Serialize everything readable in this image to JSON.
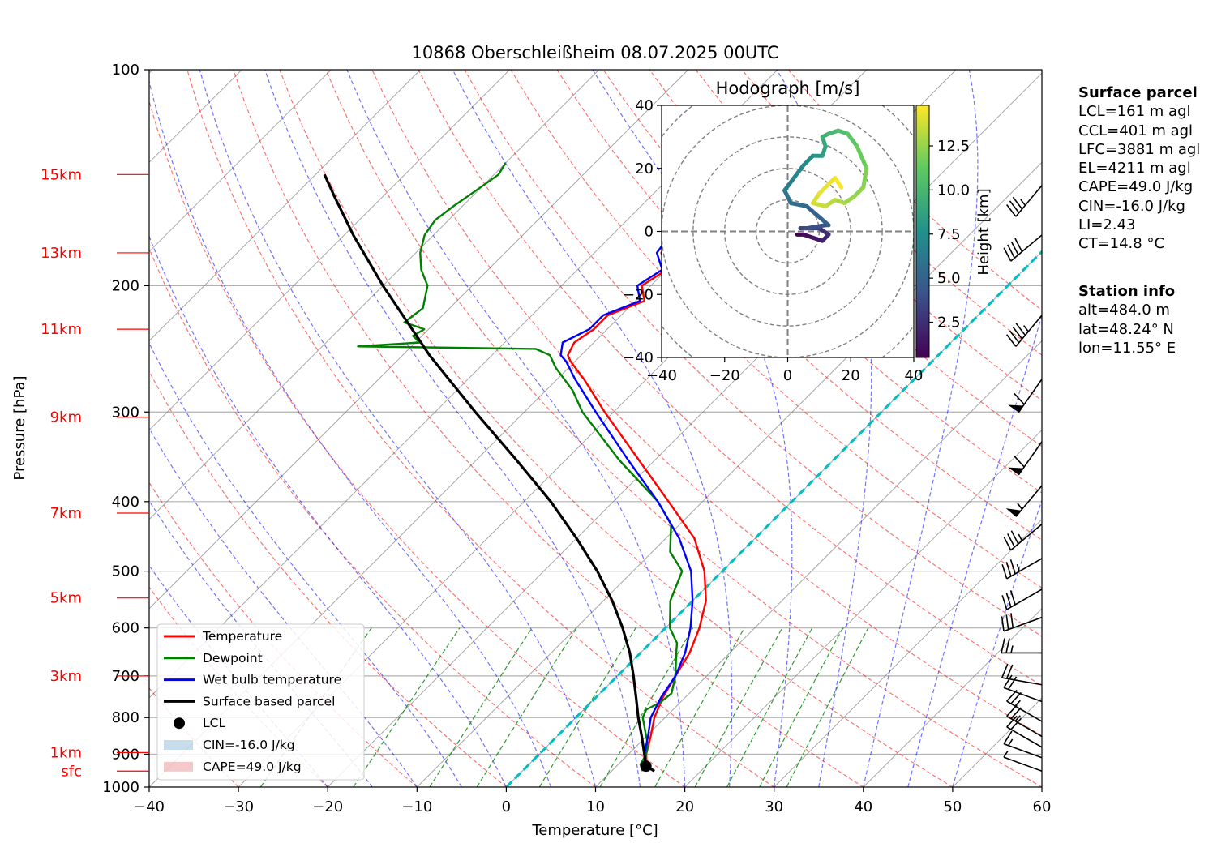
{
  "chart_data": {
    "type": "skew-t",
    "title": "10868 Oberschleißheim 08.07.2025 00UTC",
    "xlabel": "Temperature [°C]",
    "ylabel": "Pressure [hPa]",
    "xlim": [
      -40,
      60
    ],
    "ylim": [
      1000,
      100
    ],
    "y_scale": "log",
    "x_ticks": [
      "−40",
      "−30",
      "−20",
      "−10",
      "0",
      "10",
      "20",
      "30",
      "40",
      "50",
      "60"
    ],
    "y_ticks": [
      "100",
      "200",
      "300",
      "400",
      "500",
      "600",
      "700",
      "800",
      "900",
      "1000"
    ],
    "height_labels": [
      {
        "label": "15km",
        "p": 140
      },
      {
        "label": "13km",
        "p": 180
      },
      {
        "label": "11km",
        "p": 230
      },
      {
        "label": "9km",
        "p": 305
      },
      {
        "label": "7km",
        "p": 415
      },
      {
        "label": "5km",
        "p": 545
      },
      {
        "label": "3km",
        "p": 700
      },
      {
        "label": "1km",
        "p": 895
      },
      {
        "label": "sfc",
        "p": 950
      }
    ],
    "legend_position": "lower-left",
    "legend": [
      "Temperature",
      "Dewpoint",
      "Wet bulb temperature",
      "Surface based parcel",
      "LCL",
      "CIN=-16.0 J/kg",
      "CAPE=49.0 J/kg"
    ],
    "series": [
      {
        "name": "Temperature",
        "color": "#ff0000",
        "points": [
          [
            950,
            14.8
          ],
          [
            930,
            13.2
          ],
          [
            900,
            12.0
          ],
          [
            850,
            10.5
          ],
          [
            800,
            8.8
          ],
          [
            750,
            7.5
          ],
          [
            700,
            6.5
          ],
          [
            650,
            5.5
          ],
          [
            600,
            3.8
          ],
          [
            550,
            1.5
          ],
          [
            500,
            -2.0
          ],
          [
            450,
            -6.8
          ],
          [
            400,
            -13.8
          ],
          [
            350,
            -21.8
          ],
          [
            300,
            -31.0
          ],
          [
            270,
            -37.0
          ],
          [
            255,
            -40.5
          ],
          [
            250,
            -41.5
          ],
          [
            240,
            -42.2
          ],
          [
            230,
            -41.5
          ],
          [
            220,
            -41.5
          ],
          [
            210,
            -39.0
          ],
          [
            200,
            -41.0
          ],
          [
            190,
            -40.0
          ],
          [
            180,
            -42.5
          ],
          [
            170,
            -43.0
          ],
          [
            160,
            -45.0
          ],
          [
            150,
            -46.5
          ],
          [
            140,
            -48.0
          ],
          [
            135,
            -49.8
          ]
        ]
      },
      {
        "name": "Dewpoint",
        "color": "#008000",
        "points": [
          [
            950,
            13.5
          ],
          [
            930,
            12.5
          ],
          [
            900,
            12.0
          ],
          [
            870,
            11.0
          ],
          [
            850,
            10.0
          ],
          [
            800,
            7.5
          ],
          [
            780,
            7.0
          ],
          [
            760,
            7.8
          ],
          [
            740,
            8.0
          ],
          [
            700,
            6.5
          ],
          [
            650,
            4.0
          ],
          [
            630,
            3.0
          ],
          [
            600,
            0.5
          ],
          [
            550,
            -2.5
          ],
          [
            500,
            -4.5
          ],
          [
            470,
            -8.0
          ],
          [
            430,
            -11.0
          ],
          [
            400,
            -15.0
          ],
          [
            350,
            -24.0
          ],
          [
            300,
            -33.5
          ],
          [
            280,
            -37.0
          ],
          [
            260,
            -41.5
          ],
          [
            250,
            -43.5
          ],
          [
            245,
            -45.8
          ],
          [
            243,
            -66.0
          ],
          [
            240,
            -59.5
          ],
          [
            235,
            -61.0
          ],
          [
            230,
            -60.5
          ],
          [
            225,
            -63.5
          ],
          [
            215,
            -63.0
          ],
          [
            200,
            -65.0
          ],
          [
            190,
            -67.5
          ],
          [
            180,
            -69.5
          ],
          [
            170,
            -71.0
          ],
          [
            162,
            -71.5
          ],
          [
            155,
            -71.0
          ],
          [
            150,
            -70.5
          ],
          [
            145,
            -70.0
          ],
          [
            140,
            -69.5
          ],
          [
            135,
            -70.0
          ]
        ]
      },
      {
        "name": "Wet bulb temperature",
        "color": "#0000ff",
        "points": [
          [
            950,
            14.2
          ],
          [
            930,
            13.0
          ],
          [
            900,
            11.8
          ],
          [
            850,
            10.2
          ],
          [
            800,
            8.4
          ],
          [
            750,
            7.3
          ],
          [
            700,
            6.5
          ],
          [
            650,
            5.0
          ],
          [
            600,
            2.8
          ],
          [
            550,
            0.0
          ],
          [
            500,
            -3.5
          ],
          [
            450,
            -8.5
          ],
          [
            400,
            -15.0
          ],
          [
            350,
            -23.0
          ],
          [
            300,
            -32.0
          ],
          [
            270,
            -38.0
          ],
          [
            255,
            -41.0
          ],
          [
            250,
            -42.3
          ],
          [
            240,
            -43.5
          ],
          [
            230,
            -42.0
          ],
          [
            220,
            -42.0
          ],
          [
            210,
            -39.5
          ],
          [
            200,
            -41.5
          ],
          [
            190,
            -40.5
          ],
          [
            180,
            -43.0
          ],
          [
            170,
            -43.5
          ],
          [
            160,
            -45.5
          ],
          [
            150,
            -47.0
          ],
          [
            140,
            -48.5
          ],
          [
            135,
            -50.5
          ]
        ]
      },
      {
        "name": "Surface based parcel",
        "color": "#000000",
        "points": [
          [
            950,
            14.8
          ],
          [
            935,
            13.3
          ],
          [
            900,
            11.8
          ],
          [
            850,
            9.5
          ],
          [
            800,
            7.0
          ],
          [
            750,
            4.5
          ],
          [
            700,
            1.8
          ],
          [
            650,
            -1.2
          ],
          [
            600,
            -4.8
          ],
          [
            550,
            -9.0
          ],
          [
            500,
            -14.0
          ],
          [
            450,
            -20.0
          ],
          [
            400,
            -27.0
          ],
          [
            350,
            -35.5
          ],
          [
            300,
            -45.5
          ],
          [
            250,
            -57.0
          ],
          [
            200,
            -70.0
          ],
          [
            170,
            -79.0
          ],
          [
            150,
            -85.5
          ],
          [
            140,
            -89.0
          ]
        ]
      }
    ],
    "lcl": {
      "label": "LCL",
      "p": 935,
      "t": 13.3
    },
    "cin": "CIN=-16.0 J/kg",
    "cape": "CAPE=49.0 J/kg",
    "wind_barbs": [
      {
        "p": 950,
        "speed_kt": 5,
        "dir": 290
      },
      {
        "p": 910,
        "speed_kt": 15,
        "dir": 290
      },
      {
        "p": 880,
        "speed_kt": 20,
        "dir": 300
      },
      {
        "p": 850,
        "speed_kt": 25,
        "dir": 300
      },
      {
        "p": 810,
        "speed_kt": 25,
        "dir": 300
      },
      {
        "p": 760,
        "speed_kt": 20,
        "dir": 290
      },
      {
        "p": 720,
        "speed_kt": 20,
        "dir": 280
      },
      {
        "p": 650,
        "speed_kt": 25,
        "dir": 270
      },
      {
        "p": 580,
        "speed_kt": 30,
        "dir": 250
      },
      {
        "p": 530,
        "speed_kt": 30,
        "dir": 240
      },
      {
        "p": 480,
        "speed_kt": 35,
        "dir": 240
      },
      {
        "p": 430,
        "speed_kt": 35,
        "dir": 230
      },
      {
        "p": 380,
        "speed_kt": 55,
        "dir": 220
      },
      {
        "p": 330,
        "speed_kt": 60,
        "dir": 215
      },
      {
        "p": 270,
        "speed_kt": 60,
        "dir": 215
      },
      {
        "p": 220,
        "speed_kt": 45,
        "dir": 220
      },
      {
        "p": 170,
        "speed_kt": 40,
        "dir": 230
      },
      {
        "p": 145,
        "speed_kt": 35,
        "dir": 220
      }
    ],
    "hodograph": {
      "title": "Hodograph [m/s]",
      "xlim": [
        -40,
        40
      ],
      "ylim": [
        -40,
        40
      ],
      "ticks": [
        "−40",
        "−20",
        "0",
        "20",
        "40"
      ],
      "colorbar_label": "Height [km]",
      "colorbar_ticks": [
        "2.5",
        "5.0",
        "7.5",
        "10.0",
        "12.5"
      ],
      "colorbar_range": [
        0.5,
        14.8
      ],
      "points": [
        [
          0.5,
          3,
          -1
        ],
        [
          1.0,
          5,
          -1
        ],
        [
          1.5,
          8,
          -2
        ],
        [
          2.0,
          11,
          -3
        ],
        [
          2.5,
          13,
          -1
        ],
        [
          3.0,
          10,
          1
        ],
        [
          3.5,
          4,
          1
        ],
        [
          4.0,
          6,
          1
        ],
        [
          4.5,
          12,
          2
        ],
        [
          5.0,
          13,
          2
        ],
        [
          5.5,
          6,
          8
        ],
        [
          6.0,
          1,
          9
        ],
        [
          6.5,
          -1,
          13
        ],
        [
          7.0,
          2,
          17
        ],
        [
          7.5,
          5,
          21
        ],
        [
          8.0,
          8,
          24
        ],
        [
          8.5,
          11,
          24
        ],
        [
          9.0,
          12,
          27
        ],
        [
          9.5,
          11,
          30
        ],
        [
          10.0,
          13,
          31
        ],
        [
          10.5,
          16,
          32
        ],
        [
          11.0,
          19,
          31
        ],
        [
          11.5,
          22,
          27
        ],
        [
          12.0,
          25,
          20
        ],
        [
          12.3,
          24,
          14
        ],
        [
          12.6,
          21,
          11
        ],
        [
          13.0,
          18,
          9
        ],
        [
          13.3,
          15,
          10
        ],
        [
          13.6,
          12,
          8
        ],
        [
          14.0,
          8,
          9
        ],
        [
          14.3,
          10,
          12
        ],
        [
          14.5,
          13,
          15
        ],
        [
          14.7,
          15,
          17
        ],
        [
          14.8,
          17,
          14
        ]
      ]
    }
  },
  "info": {
    "surface": {
      "heading": "Surface parcel",
      "lines": [
        "LCL=161 m agl",
        "CCL=401 m agl",
        "LFC=3881 m agl",
        "EL=4211 m agl",
        "CAPE=49.0 J/kg",
        "CIN=-16.0 J/kg",
        "LI=2.43",
        "CT=14.8 °C"
      ]
    },
    "station": {
      "heading": "Station info",
      "lines": [
        "alt=484.0 m",
        "lat=48.24° N",
        "lon=11.55° E"
      ]
    }
  },
  "colors": {
    "temperature": "#ff0000",
    "dewpoint": "#008000",
    "wetbulb": "#0000ff",
    "parcel": "#000000",
    "dry_adiabat": "#ff0000",
    "moist_adiabat": "#0000ff",
    "mixing_ratio": "#008000",
    "isotherm": "#808080",
    "zero_isotherm": "#00bfbf",
    "height_label": "#ff0000",
    "cin_fill": "#1f77b4",
    "cape_fill": "#d62728"
  }
}
